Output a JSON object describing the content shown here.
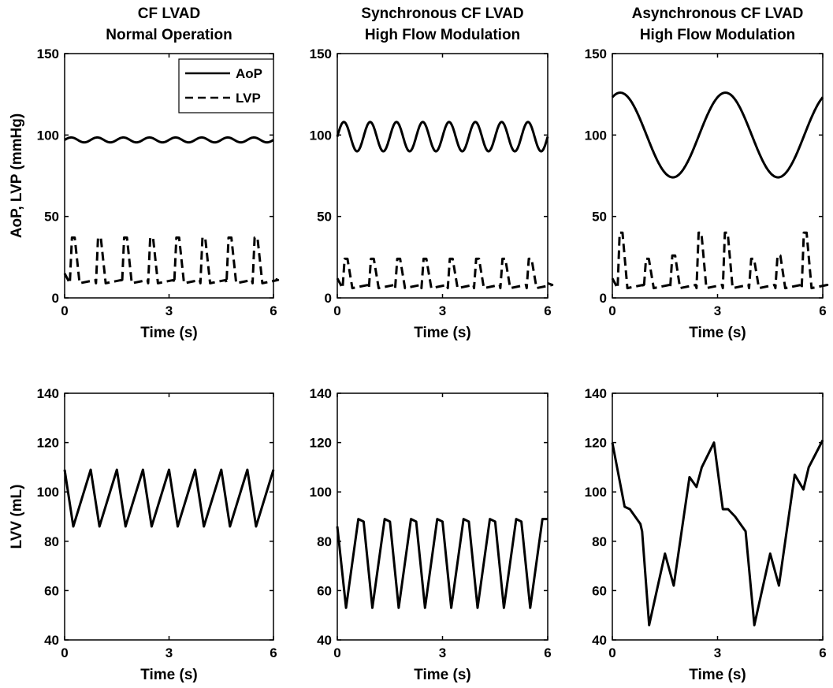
{
  "chart_data": [
    {
      "type": "line",
      "title": [
        "CF LVAD",
        "Normal Operation"
      ],
      "xlabel": "Time (s)",
      "ylabel": "AoP, LVP (mmHg)",
      "xlim": [
        0,
        6
      ],
      "ylim": [
        0,
        150
      ],
      "xticks": [
        0,
        3,
        6
      ],
      "yticks": [
        0,
        50,
        100,
        150
      ],
      "grid": false,
      "legend": {
        "placement": "top-right",
        "entries": [
          "AoP",
          "LVP"
        ]
      },
      "series": [
        {
          "name": "AoP",
          "style": "solid",
          "model": {
            "kind": "sine",
            "mean": 97,
            "amp": 1.5,
            "period": 0.75,
            "phase": 0.0
          }
        },
        {
          "name": "LVP",
          "style": "dashed",
          "model": {
            "kind": "pulse",
            "period": 0.75,
            "t0": 0.15,
            "base": 9,
            "peaks": [
              37
            ],
            "upT": 0.06,
            "holdT": 0.08,
            "downT": 0.14
          }
        }
      ]
    },
    {
      "type": "line",
      "title": [
        "Synchronous CF LVAD",
        "High Flow Modulation"
      ],
      "xlabel": "Time (s)",
      "ylabel": "",
      "xlim": [
        0,
        6
      ],
      "ylim": [
        0,
        150
      ],
      "xticks": [
        0,
        3,
        6
      ],
      "yticks": [
        0,
        50,
        100,
        150
      ],
      "grid": false,
      "series": [
        {
          "name": "AoP",
          "style": "solid",
          "model": {
            "kind": "sine",
            "mean": 99,
            "amp": 9,
            "period": 0.75,
            "phase": 0.0
          }
        },
        {
          "name": "LVP",
          "style": "dashed",
          "model": {
            "kind": "pulse",
            "period": 0.75,
            "t0": 0.15,
            "base": 6,
            "peaks": [
              24
            ],
            "upT": 0.06,
            "holdT": 0.08,
            "downT": 0.14
          }
        }
      ]
    },
    {
      "type": "line",
      "title": [
        "Asynchronous CF LVAD",
        "High Flow Modulation"
      ],
      "xlabel": "Time (s)",
      "ylabel": "",
      "xlim": [
        0,
        6
      ],
      "ylim": [
        0,
        150
      ],
      "xticks": [
        0,
        3,
        6
      ],
      "yticks": [
        0,
        50,
        100,
        150
      ],
      "grid": false,
      "series": [
        {
          "name": "AoP",
          "style": "solid",
          "model": {
            "kind": "sine",
            "mean": 100,
            "amp": 26,
            "period": 3.0,
            "phase": 1.1
          }
        },
        {
          "name": "LVP",
          "style": "dashed",
          "model": {
            "kind": "pulse",
            "period": 0.75,
            "t0": 0.15,
            "base": 6,
            "peaks": [
              40,
              24,
              26,
              40,
              40,
              24,
              26,
              40
            ],
            "upT": 0.06,
            "holdT": 0.08,
            "downT": 0.14
          }
        }
      ]
    },
    {
      "type": "line",
      "title": [],
      "xlabel": "Time (s)",
      "ylabel": "LVV (mL)",
      "xlim": [
        0,
        6
      ],
      "ylim": [
        40,
        140
      ],
      "xticks": [
        0,
        3,
        6
      ],
      "yticks": [
        40,
        60,
        80,
        100,
        120,
        140
      ],
      "grid": false,
      "series": [
        {
          "name": "",
          "style": "solid",
          "points": [
            [
              0,
              109
            ],
            [
              0.25,
              86
            ],
            [
              0.75,
              109
            ],
            [
              1.0,
              86
            ],
            [
              1.5,
              109
            ],
            [
              1.75,
              86
            ],
            [
              2.25,
              109
            ],
            [
              2.5,
              86
            ],
            [
              3.0,
              109
            ],
            [
              3.25,
              86
            ],
            [
              3.75,
              109
            ],
            [
              4.0,
              86
            ],
            [
              4.5,
              109
            ],
            [
              4.75,
              86
            ],
            [
              5.25,
              109
            ],
            [
              5.5,
              86
            ],
            [
              6.0,
              109
            ]
          ]
        }
      ]
    },
    {
      "type": "line",
      "title": [],
      "xlabel": "Time (s)",
      "ylabel": "",
      "xlim": [
        0,
        6
      ],
      "ylim": [
        40,
        140
      ],
      "xticks": [
        0,
        3,
        6
      ],
      "yticks": [
        40,
        60,
        80,
        100,
        120,
        140
      ],
      "grid": false,
      "series": [
        {
          "name": "",
          "style": "solid",
          "points": [
            [
              0,
              86
            ],
            [
              0.25,
              53
            ],
            [
              0.6,
              89
            ],
            [
              0.75,
              88
            ],
            [
              1.0,
              53
            ],
            [
              1.35,
              89
            ],
            [
              1.5,
              88
            ],
            [
              1.75,
              53
            ],
            [
              2.1,
              89
            ],
            [
              2.25,
              88
            ],
            [
              2.5,
              53
            ],
            [
              2.85,
              89
            ],
            [
              3.0,
              88
            ],
            [
              3.25,
              53
            ],
            [
              3.6,
              89
            ],
            [
              3.75,
              88
            ],
            [
              4.0,
              53
            ],
            [
              4.35,
              89
            ],
            [
              4.5,
              88
            ],
            [
              4.75,
              53
            ],
            [
              5.1,
              89
            ],
            [
              5.25,
              88
            ],
            [
              5.5,
              53
            ],
            [
              5.85,
              89
            ],
            [
              6.0,
              89
            ]
          ]
        }
      ]
    },
    {
      "type": "line",
      "title": [],
      "xlabel": "Time (s)",
      "ylabel": "",
      "xlim": [
        0,
        6
      ],
      "ylim": [
        40,
        140
      ],
      "xticks": [
        0,
        3,
        6
      ],
      "yticks": [
        40,
        60,
        80,
        100,
        120,
        140
      ],
      "grid": false,
      "series": [
        {
          "name": "",
          "style": "solid",
          "points": [
            [
              0,
              120
            ],
            [
              0.35,
              94
            ],
            [
              0.5,
              93
            ],
            [
              0.8,
              87
            ],
            [
              0.85,
              84
            ],
            [
              1.05,
              46
            ],
            [
              1.5,
              75
            ],
            [
              1.75,
              62
            ],
            [
              2.2,
              106
            ],
            [
              2.4,
              102
            ],
            [
              2.55,
              110
            ],
            [
              2.9,
              120
            ],
            [
              3.15,
              93
            ],
            [
              3.3,
              93
            ],
            [
              3.5,
              90
            ],
            [
              3.8,
              84
            ],
            [
              4.05,
              46
            ],
            [
              4.5,
              75
            ],
            [
              4.75,
              62
            ],
            [
              5.2,
              107
            ],
            [
              5.45,
              101
            ],
            [
              5.6,
              110
            ],
            [
              6.0,
              121
            ]
          ]
        }
      ]
    }
  ]
}
